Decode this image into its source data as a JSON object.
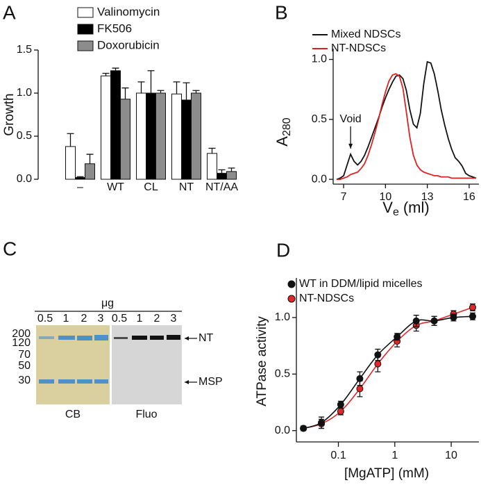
{
  "chart_data": [
    {
      "panel": "A",
      "type": "bar",
      "ylabel": "Growth",
      "categories": [
        "–",
        "WT",
        "CL",
        "NT",
        "NT/AA"
      ],
      "series": [
        {
          "name": "Valinomycin",
          "color": "#ffffff",
          "values": [
            0.38,
            1.2,
            1.0,
            0.99,
            0.3
          ],
          "errors": [
            0.15,
            0.03,
            0.13,
            0.14,
            0.06
          ]
        },
        {
          "name": "FK506",
          "color": "#000000",
          "values": [
            0.02,
            1.26,
            1.0,
            0.92,
            0.07
          ],
          "errors": [
            0.01,
            0.03,
            0.26,
            0.2,
            0.04
          ]
        },
        {
          "name": "Doxorubicin",
          "color": "#8c8c8c",
          "values": [
            0.18,
            0.93,
            1.0,
            1.0,
            0.09
          ],
          "errors": [
            0.11,
            0.13,
            0.03,
            0.03,
            0.04
          ]
        }
      ],
      "ylim": [
        0,
        1.5
      ],
      "yticks": [
        {
          "value": 0,
          "label": "0.0"
        },
        0.5,
        {
          "value": 1,
          "label": "1.0"
        },
        1.5
      ],
      "legend": "top"
    },
    {
      "panel": "B",
      "type": "line",
      "ylabel": {
        "main": "A",
        "sub": "280"
      },
      "xlabel": {
        "main": "V",
        "sub": "e",
        "unit": "(ml)"
      },
      "x": [
        6.5,
        6.75,
        7,
        7.25,
        7.5,
        7.75,
        8,
        8.25,
        8.5,
        8.75,
        9,
        9.25,
        9.5,
        9.75,
        10,
        10.25,
        10.5,
        10.75,
        11,
        11.25,
        11.5,
        11.75,
        12,
        12.25,
        12.5,
        12.75,
        13,
        13.25,
        13.5,
        13.75,
        14,
        14.25,
        14.5,
        14.75,
        15,
        15.25,
        15.5,
        15.75,
        16,
        16.25,
        16.5
      ],
      "series": [
        {
          "name": "Mixed NDSCs",
          "color": "#111111",
          "values": [
            0,
            0.01,
            0.03,
            0.12,
            0.21,
            0.15,
            0.12,
            0.15,
            0.2,
            0.27,
            0.35,
            0.43,
            0.51,
            0.6,
            0.68,
            0.75,
            0.81,
            0.86,
            0.87,
            0.84,
            0.74,
            0.58,
            0.46,
            0.43,
            0.55,
            0.8,
            0.98,
            0.97,
            0.88,
            0.74,
            0.58,
            0.45,
            0.34,
            0.25,
            0.18,
            0.15,
            0.11,
            0.05,
            0.03,
            0.02,
            0.01
          ]
        },
        {
          "name": "NT-NDSCs",
          "color": "#e02020",
          "values": [
            0,
            0,
            0.01,
            0.02,
            0.04,
            0.05,
            0.06,
            0.09,
            0.13,
            0.2,
            0.29,
            0.39,
            0.5,
            0.62,
            0.73,
            0.82,
            0.87,
            0.88,
            0.86,
            0.76,
            0.56,
            0.35,
            0.2,
            0.12,
            0.08,
            0.06,
            0.05,
            0.04,
            0.03,
            0.03,
            0.02,
            0.02,
            0.02,
            0.01,
            0.01,
            0.01,
            0.01,
            0.01,
            0.01,
            0.01,
            0.01
          ]
        }
      ],
      "xlim": [
        6.25,
        16.7
      ],
      "ylim": [
        -0.04,
        1.09
      ],
      "xticks": [
        7,
        10,
        13,
        16
      ],
      "yticks": [
        {
          "value": 0,
          "label": "0.0"
        },
        0.5,
        {
          "value": 1,
          "label": "1.0"
        }
      ],
      "annotation": {
        "text": "Void",
        "x": 7.5
      },
      "legend": "top-left"
    },
    {
      "panel": "D",
      "type": "scatter",
      "xscale": "log",
      "xlabel": "[MgATP] (mM)",
      "ylabel": "ATPase activity",
      "x": [
        0.024,
        0.05,
        0.11,
        0.24,
        0.5,
        1.1,
        2.4,
        5,
        11,
        24
      ],
      "series": [
        {
          "name": "WT in DDM/lipid micelles",
          "color": "#111111",
          "values": [
            0.02,
            0.07,
            0.23,
            0.46,
            0.67,
            0.83,
            0.97,
            0.97,
            1.0,
            1.01
          ],
          "errors": [
            0.02,
            0.05,
            0.03,
            0.06,
            0.05,
            0.03,
            0.05,
            0.04,
            0.03,
            0.03
          ]
        },
        {
          "name": "NT-NDSCs",
          "color": "#e3262a",
          "values": [
            0.02,
            0.06,
            0.17,
            0.37,
            0.59,
            0.79,
            0.93,
            0.97,
            1.03,
            1.09
          ],
          "errors": [
            0.02,
            0.04,
            0.03,
            0.07,
            0.07,
            0.05,
            0.05,
            0.04,
            0.03,
            0.03
          ]
        }
      ],
      "xlim": [
        0.018,
        31
      ],
      "ylim": [
        -0.1,
        1.35
      ],
      "xticks": [
        0.1,
        1,
        10
      ],
      "yticks": [
        {
          "value": 0,
          "label": "0.0"
        },
        0.5,
        {
          "value": 1,
          "label": "1.0"
        }
      ],
      "lines": true,
      "legend": "top-left"
    }
  ],
  "gel": {
    "panel": "C",
    "unit": "μg",
    "lanes": [
      "0.5",
      "1",
      "2",
      "3",
      "0.5",
      "1",
      "2",
      "3"
    ],
    "markers": [
      "200",
      "120",
      "70",
      "50",
      "30"
    ],
    "bands": [
      "NT",
      "MSP"
    ],
    "stains": [
      "CB",
      "Fluo"
    ]
  }
}
